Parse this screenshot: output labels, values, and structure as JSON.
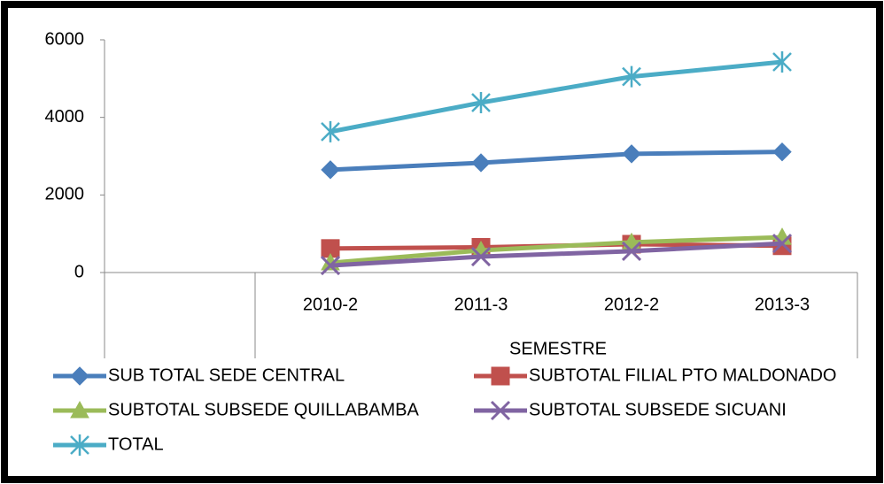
{
  "chart_data": {
    "type": "line",
    "x_label": "SEMESTRE",
    "categories": [
      null,
      "2010-2",
      "2011-3",
      "2012-2",
      "2013-3"
    ],
    "series": [
      {
        "name": "SUB TOTAL SEDE CENTRAL",
        "color": "#4a7ebb",
        "marker": "diamond",
        "values": [
          null,
          2650,
          2830,
          3060,
          3110
        ]
      },
      {
        "name": "SUBTOTAL FILIAL PTO MALDONADO",
        "color": "#c0504d",
        "marker": "square",
        "values": [
          null,
          620,
          650,
          730,
          690
        ]
      },
      {
        "name": "SUBTOTAL SUBSEDE QUILLABAMBA",
        "color": "#9bbb59",
        "marker": "triangle",
        "values": [
          null,
          250,
          570,
          780,
          910
        ]
      },
      {
        "name": "SUBTOTAL SUBSEDE SICUANI",
        "color": "#8064a2",
        "marker": "x",
        "values": [
          null,
          180,
          410,
          550,
          750
        ]
      },
      {
        "name": "TOTAL",
        "color": "#4bacc6",
        "marker": "star",
        "values": [
          null,
          3630,
          4380,
          5050,
          5430
        ]
      }
    ],
    "ylim": [
      0,
      6000
    ],
    "yticks": [
      0,
      2000,
      4000,
      6000
    ],
    "grid": false
  }
}
